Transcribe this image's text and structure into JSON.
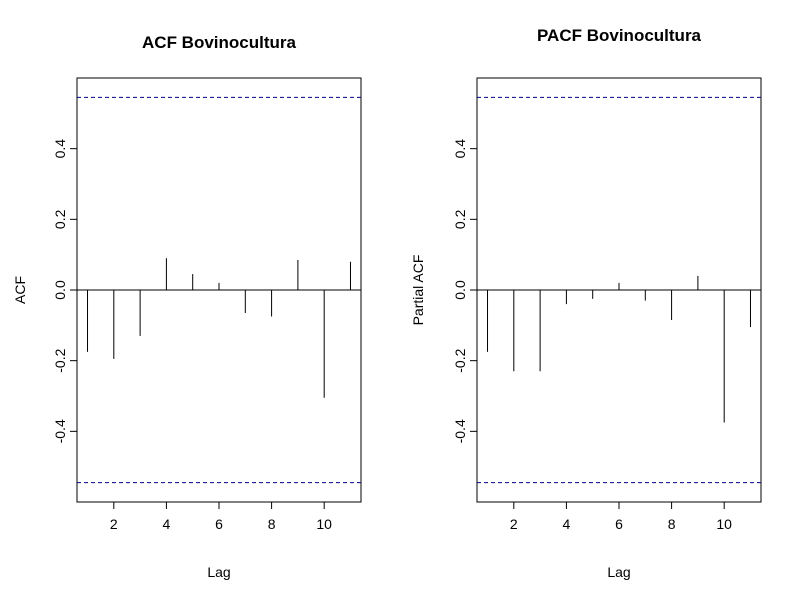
{
  "chart_data": [
    {
      "type": "bar",
      "subtype": "acf-spikes",
      "title": "ACF Bovinocultura",
      "xlabel": "Lag",
      "ylabel": "ACF",
      "xlim": [
        0.6,
        11.4
      ],
      "ylim": [
        -0.6,
        0.6
      ],
      "x_ticks": [
        2,
        4,
        6,
        8,
        10
      ],
      "y_ticks": [
        -0.4,
        -0.2,
        0.0,
        0.2,
        0.4
      ],
      "y_tick_labels": [
        "-0.4",
        "-0.2",
        "0.0",
        "0.2",
        "0.4"
      ],
      "x_tick_labels": [
        "2",
        "4",
        "6",
        "8",
        "10"
      ],
      "lags": [
        1,
        2,
        3,
        4,
        5,
        6,
        7,
        8,
        9,
        10,
        11
      ],
      "values": [
        -0.175,
        -0.195,
        -0.13,
        0.09,
        0.045,
        0.02,
        -0.065,
        -0.075,
        0.085,
        -0.305,
        0.08
      ],
      "confidence_bound": 0.545,
      "confidence_color": "#00008B",
      "grid": false
    },
    {
      "type": "bar",
      "subtype": "pacf-spikes",
      "title": "PACF Bovinocultura",
      "xlabel": "Lag",
      "ylabel": "Partial ACF",
      "xlim": [
        0.6,
        11.4
      ],
      "ylim": [
        -0.6,
        0.6
      ],
      "x_ticks": [
        2,
        4,
        6,
        8,
        10
      ],
      "y_ticks": [
        -0.4,
        -0.2,
        0.0,
        0.2,
        0.4
      ],
      "y_tick_labels": [
        "-0.4",
        "-0.2",
        "0.0",
        "0.2",
        "0.4"
      ],
      "x_tick_labels": [
        "2",
        "4",
        "6",
        "8",
        "10"
      ],
      "lags": [
        1,
        2,
        3,
        4,
        5,
        6,
        7,
        8,
        9,
        10,
        11
      ],
      "values": [
        -0.175,
        -0.23,
        -0.23,
        -0.04,
        -0.025,
        0.02,
        -0.03,
        -0.085,
        0.04,
        -0.375,
        -0.105
      ],
      "confidence_bound": 0.545,
      "confidence_color": "#00008B",
      "grid": false
    }
  ]
}
